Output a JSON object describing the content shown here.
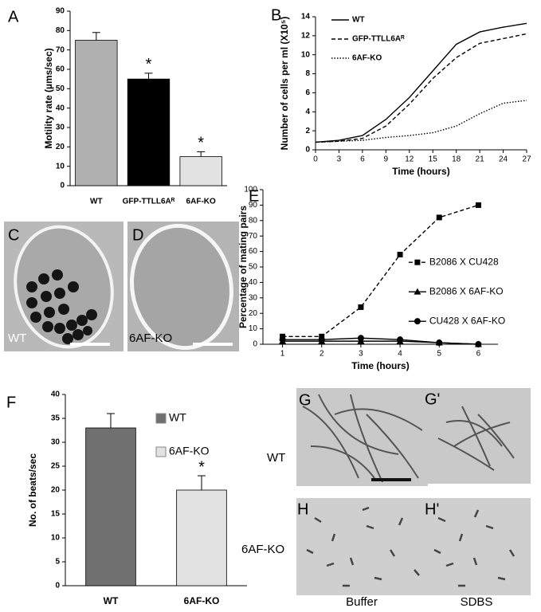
{
  "chart_data": [
    {
      "type": "bar",
      "y_label": "Motility rate (µms/sec)",
      "categories": [
        "WT",
        "GFP-TTLL6Aᴿ",
        "6AF-KO"
      ],
      "values": [
        75,
        55,
        15
      ],
      "errors": [
        4,
        3,
        2.5
      ],
      "colors": [
        "#b0b0b0",
        "#000000",
        "#e2e2e2"
      ],
      "significance": [
        null,
        "*",
        "*"
      ],
      "ylim": [
        0,
        90
      ],
      "yticks": [
        0,
        10,
        20,
        30,
        40,
        50,
        60,
        70,
        80,
        90
      ],
      "grid": false
    },
    {
      "type": "line",
      "y_label": "Number of cells per ml (X10⁵)",
      "x_label": "Time (hours)",
      "x": [
        0,
        3,
        6,
        9,
        12,
        15,
        18,
        21,
        24,
        27
      ],
      "xlim": [
        0,
        27
      ],
      "xticks": [
        0,
        3,
        6,
        9,
        12,
        15,
        18,
        21,
        24,
        27
      ],
      "ylim": [
        0,
        14
      ],
      "yticks": [
        0,
        2,
        4,
        6,
        8,
        10,
        12,
        14
      ],
      "legend": "upper left",
      "series": [
        {
          "name": "WT",
          "color": "#000000",
          "dash": "solid",
          "values": [
            0.8,
            1.0,
            1.5,
            3.2,
            5.5,
            8.3,
            11.1,
            12.4,
            12.9,
            13.3
          ]
        },
        {
          "name": "GFP-TTLL6Aᴿ",
          "color": "#000000",
          "dash": "dashed",
          "values": [
            0.8,
            0.9,
            1.2,
            2.5,
            4.8,
            7.5,
            9.7,
            11.2,
            11.7,
            12.2
          ]
        },
        {
          "name": "6AF-KO",
          "color": "#000000",
          "dash": "dotted",
          "values": [
            0.8,
            0.9,
            1.0,
            1.3,
            1.5,
            1.8,
            2.5,
            3.8,
            4.9,
            5.2
          ]
        }
      ]
    },
    {
      "type": "line",
      "y_label": "Percentage of mating pairs",
      "x_label": "Time (hours)",
      "x": [
        1,
        2,
        3,
        4,
        5,
        6
      ],
      "xlim": [
        0.5,
        6.5
      ],
      "xticks": [
        1,
        2,
        3,
        4,
        5,
        6
      ],
      "ylim": [
        0,
        100
      ],
      "yticks": [
        0,
        10,
        20,
        30,
        40,
        50,
        60,
        70,
        80,
        90,
        100
      ],
      "legend": "center right",
      "series": [
        {
          "name": "B2086 X CU428",
          "color": "#000000",
          "dash": "dashed",
          "marker": "square",
          "values": [
            5,
            5,
            24,
            58,
            82,
            90
          ]
        },
        {
          "name": "B2086 X 6AF-KO",
          "color": "#000000",
          "dash": "solid",
          "marker": "triangle",
          "values": [
            2,
            2,
            2,
            2,
            1,
            0
          ]
        },
        {
          "name": "CU428 X 6AF-KO",
          "color": "#000000",
          "dash": "solid",
          "marker": "circle",
          "values": [
            3,
            3,
            4,
            3,
            1,
            0
          ]
        }
      ]
    },
    {
      "type": "bar",
      "y_label": "No. of beats/sec",
      "categories": [
        "WT",
        "6AF-KO"
      ],
      "values": [
        33,
        20
      ],
      "errors": [
        3,
        3
      ],
      "colors": [
        "#707070",
        "#e2e2e2"
      ],
      "significance": [
        null,
        "*"
      ],
      "legend": "upper right",
      "ylim": [
        0,
        40
      ],
      "yticks": [
        0,
        5,
        10,
        15,
        20,
        25,
        30,
        35,
        40
      ],
      "grid": false
    }
  ],
  "panel_labels": {
    "a": "A",
    "b": "B",
    "c": "C",
    "d": "D",
    "e": "E",
    "f": "F",
    "g": "G",
    "g2": "G'",
    "h": "H",
    "h2": "H'"
  },
  "micrographs": {
    "c_label": "WT",
    "d_label": "6AF-KO",
    "rows": [
      "WT",
      "6AF-KO"
    ],
    "columns": [
      "Buffer",
      "SDBS"
    ]
  }
}
